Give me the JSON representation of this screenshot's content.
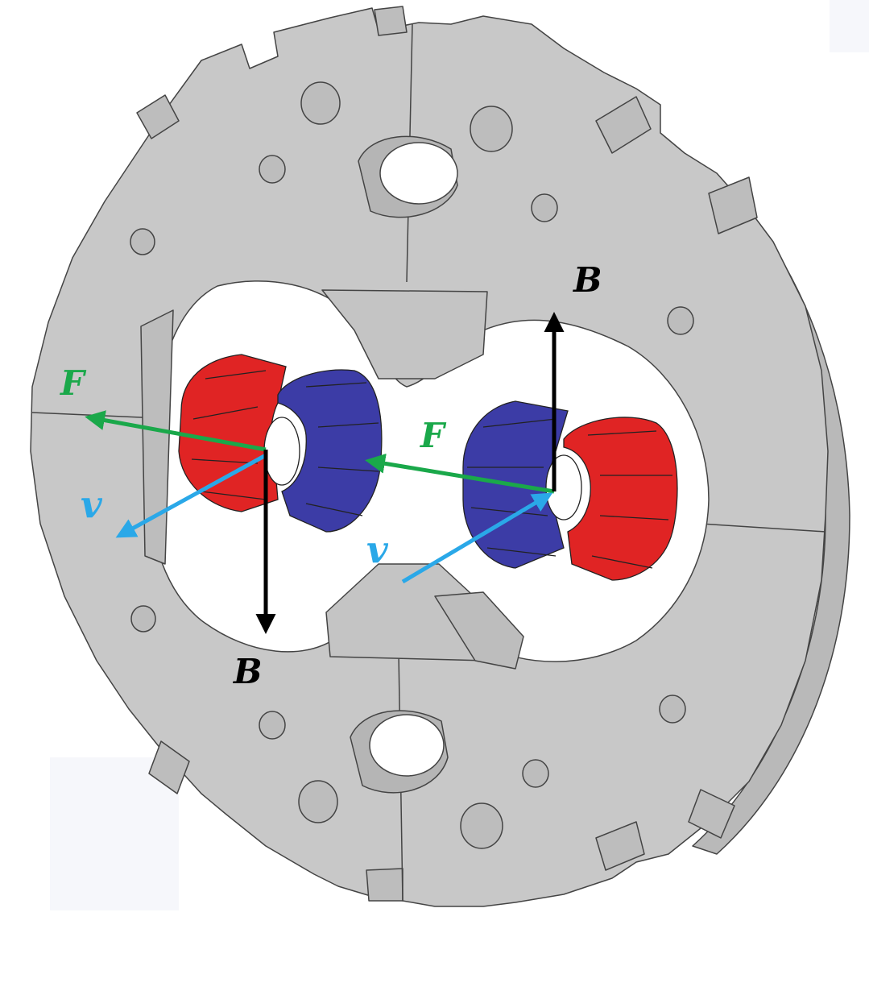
{
  "labels": {
    "b_top": "B",
    "b_bottom": "B",
    "f_left": "F",
    "f_center": "F",
    "v_left": "v",
    "v_center": "v"
  },
  "colors": {
    "yoke_fill": "#c8c8c8",
    "yoke_edge": "#444444",
    "aperture": "#ffffff",
    "coil_red": "#e02424",
    "coil_blue": "#3c3ca6",
    "arrow_B": "#000000",
    "arrow_F": "#1aa84a",
    "arrow_v": "#2aa8e8",
    "label_F": "#1aa84a",
    "label_v": "#2aa8e8",
    "label_B": "#000000"
  },
  "icons": {
    "yoke": "magnet-yoke-drawing",
    "coil_left": "coil-pair-left",
    "coil_right": "coil-pair-right"
  }
}
